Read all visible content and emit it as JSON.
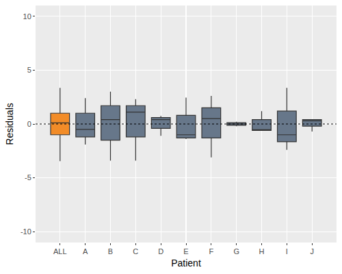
{
  "chart_data": {
    "type": "box",
    "x_label": "Patient",
    "y_label": "Residuals",
    "categories": [
      "ALL",
      "A",
      "B",
      "C",
      "D",
      "E",
      "F",
      "G",
      "H",
      "I",
      "J"
    ],
    "boxes": [
      {
        "lower": -3.45,
        "q1": -1.0,
        "median": 0.1,
        "q3": 1.0,
        "upper": 3.35
      },
      {
        "lower": -1.9,
        "q1": -1.2,
        "median": -0.5,
        "q3": 1.0,
        "upper": 2.4
      },
      {
        "lower": -3.4,
        "q1": -1.5,
        "median": 0.4,
        "q3": 1.7,
        "upper": 3.0
      },
      {
        "lower": -3.4,
        "q1": -1.2,
        "median": 1.1,
        "q3": 1.7,
        "upper": 2.3
      },
      {
        "lower": -1.1,
        "q1": -0.4,
        "median": 0.4,
        "q3": 0.6,
        "upper": 0.75
      },
      {
        "lower": -1.4,
        "q1": -1.3,
        "median": -1.0,
        "q3": 0.8,
        "upper": 2.45
      },
      {
        "lower": -3.1,
        "q1": -1.3,
        "median": 0.5,
        "q3": 1.5,
        "upper": 2.6
      },
      {
        "lower": -0.2,
        "q1": -0.12,
        "median": 0.0,
        "q3": 0.12,
        "upper": 0.2
      },
      {
        "lower": -0.6,
        "q1": -0.6,
        "median": -0.55,
        "q3": 0.4,
        "upper": 1.2
      },
      {
        "lower": -2.4,
        "q1": -1.65,
        "median": -1.0,
        "q3": 1.2,
        "upper": 3.35
      },
      {
        "lower": -0.7,
        "q1": -0.2,
        "median": 0.3,
        "q3": 0.4,
        "upper": 0.4
      }
    ],
    "colors": [
      "#f28c28",
      "#67778a",
      "#67778a",
      "#67778a",
      "#67778a",
      "#67778a",
      "#67778a",
      "#67778a",
      "#67778a",
      "#67778a",
      "#67778a"
    ],
    "hline": 0,
    "ylim": [
      -11,
      11
    ],
    "yticks": [
      -10,
      -5,
      0,
      5,
      10
    ],
    "grid": true
  }
}
